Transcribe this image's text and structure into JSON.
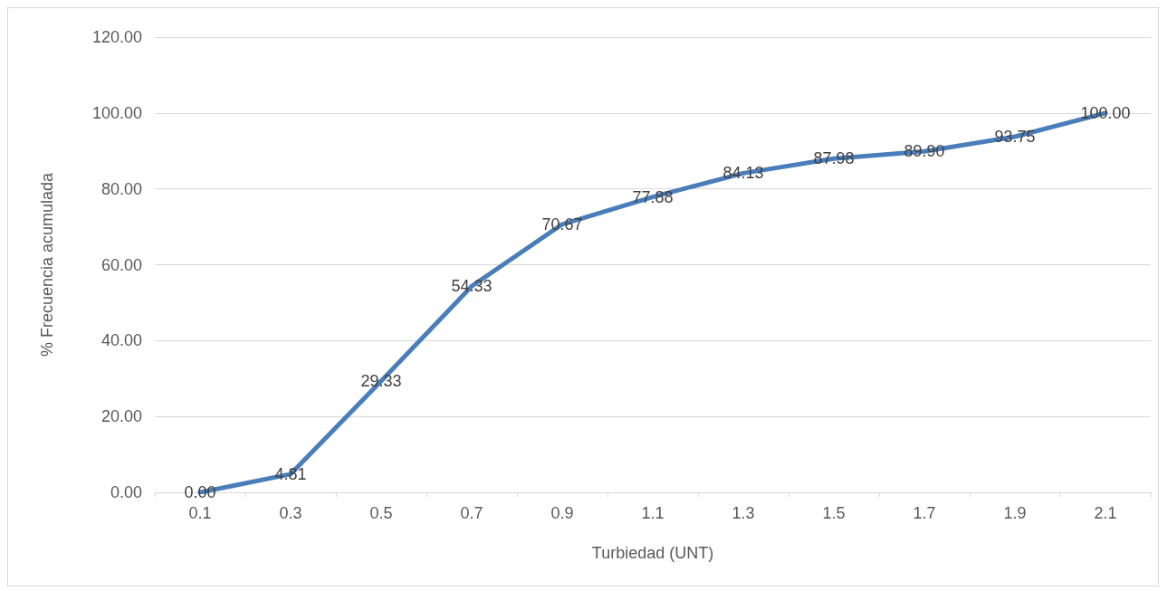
{
  "chart_data": {
    "type": "line",
    "xlabel": "Turbiedad (UNT)",
    "ylabel": "% Frecuencia acumulada",
    "categories": [
      "0.1",
      "0.3",
      "0.5",
      "0.7",
      "0.9",
      "1.1",
      "1.3",
      "1.5",
      "1.7",
      "1.9",
      "2.1"
    ],
    "values": [
      0,
      4.81,
      29.33,
      54.33,
      70.67,
      77.88,
      84.13,
      87.98,
      89.9,
      93.75,
      100
    ],
    "value_labels": [
      "0.00",
      "4.81",
      "29.33",
      "54.33",
      "70.67",
      "77.88",
      "84.13",
      "87.98",
      "89.90",
      "93.75",
      "100.00"
    ],
    "color": "#4a7ebb",
    "marker": "none",
    "line_style": "solid",
    "grid": "y",
    "ylim": [
      0,
      120
    ],
    "yticks": [
      {
        "value": 0,
        "label": "0.00"
      },
      {
        "value": 20,
        "label": "20.00"
      },
      {
        "value": 40,
        "label": "40.00"
      },
      {
        "value": 60,
        "label": "60.00"
      },
      {
        "value": 80,
        "label": "80.00"
      },
      {
        "value": 100,
        "label": "100.00"
      },
      {
        "value": 120,
        "label": "120.00"
      }
    ]
  }
}
